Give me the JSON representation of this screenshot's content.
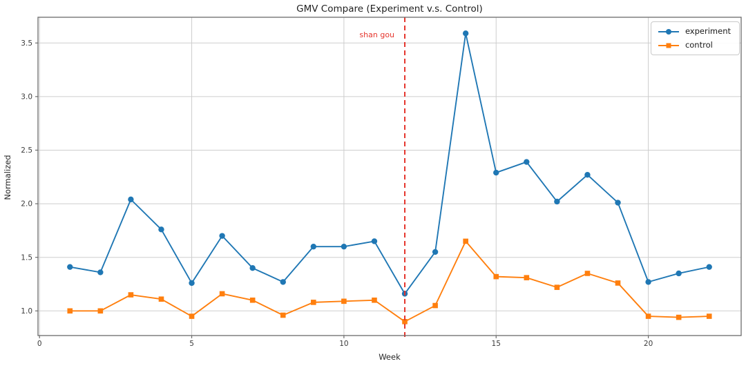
{
  "figure": {
    "title": "GMV Compare (Experiment v.s. Control)",
    "xlabel": "Week",
    "ylabel": "Normalized"
  },
  "chart_data": {
    "type": "line",
    "title": "GMV Compare (Experiment v.s. Control)",
    "xlabel": "Week",
    "ylabel": "Normalized",
    "x": [
      1,
      2,
      3,
      4,
      5,
      6,
      7,
      8,
      9,
      10,
      11,
      12,
      13,
      14,
      15,
      16,
      17,
      18,
      19,
      20,
      21,
      22
    ],
    "series": [
      {
        "name": "experiment",
        "color": "#1f77b4",
        "marker": "circle",
        "values": [
          1.41,
          1.36,
          2.04,
          1.76,
          1.26,
          1.7,
          1.4,
          1.27,
          1.6,
          1.6,
          1.65,
          1.16,
          1.55,
          3.59,
          2.29,
          2.39,
          2.02,
          2.27,
          2.01,
          1.27,
          1.35,
          1.41
        ]
      },
      {
        "name": "control",
        "color": "#ff7f0e",
        "marker": "square",
        "values": [
          1.0,
          1.0,
          1.15,
          1.11,
          0.95,
          1.16,
          1.1,
          0.96,
          1.08,
          1.09,
          1.1,
          0.9,
          1.05,
          1.65,
          1.32,
          1.31,
          1.22,
          1.35,
          1.26,
          0.95,
          0.94,
          0.95
        ]
      }
    ],
    "annotation": {
      "text": "shan gou",
      "x": 12,
      "color": "#e5342b",
      "line_style": "dashed"
    },
    "xlim": [
      -0.05,
      23.05
    ],
    "ylim": [
      0.77,
      3.74
    ],
    "xticks": [
      0,
      5,
      10,
      15,
      20
    ],
    "xtick_labels": [
      "0",
      "5",
      "10",
      "15",
      "20"
    ],
    "yticks": [
      1.0,
      1.5,
      2.0,
      2.5,
      3.0,
      3.5
    ],
    "ytick_labels": [
      "1.0",
      "1.5",
      "2.0",
      "2.5",
      "3.0",
      "3.5"
    ],
    "grid": true,
    "legend_position": "upper right",
    "style": {
      "grid_color": "#cdcdcd",
      "spine_color": "#6b6b6b",
      "background": "#ffffff"
    }
  }
}
